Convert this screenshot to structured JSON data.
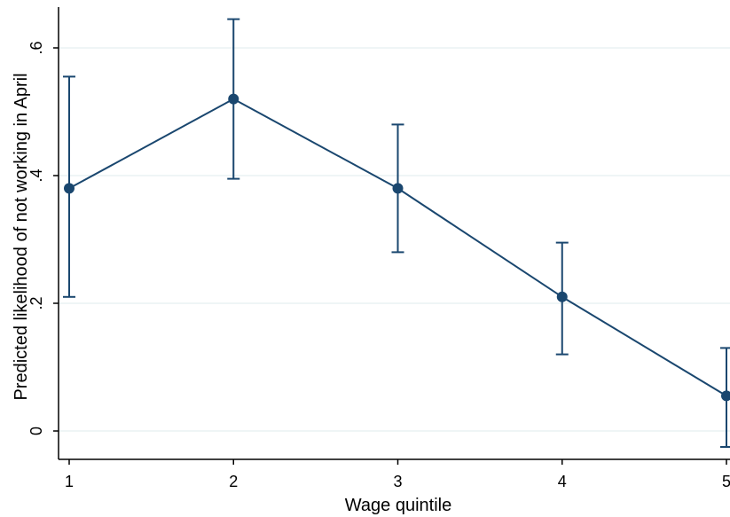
{
  "chart_data": {
    "type": "line",
    "title": "",
    "xlabel": "Wage quintile",
    "ylabel": "Predicted likelihood of not working in April",
    "x": [
      1,
      2,
      3,
      4,
      5
    ],
    "x_tick_labels": [
      "1",
      "2",
      "3",
      "4",
      "5"
    ],
    "xlim": [
      1,
      5
    ],
    "ylim": [
      0,
      0.6
    ],
    "y_ticks": [
      0,
      0.2,
      0.4,
      0.6
    ],
    "y_tick_labels": [
      "0",
      ".2",
      ".4",
      ".6"
    ],
    "grid": true,
    "series": [
      {
        "values": [
          0.38,
          0.52,
          0.38,
          0.21,
          0.055
        ],
        "ci_lower": [
          0.21,
          0.395,
          0.28,
          0.12,
          -0.025
        ],
        "ci_upper": [
          0.555,
          0.645,
          0.48,
          0.295,
          0.13
        ],
        "color": "#1a476f"
      }
    ],
    "gridline_color": "#eaf2f3"
  }
}
